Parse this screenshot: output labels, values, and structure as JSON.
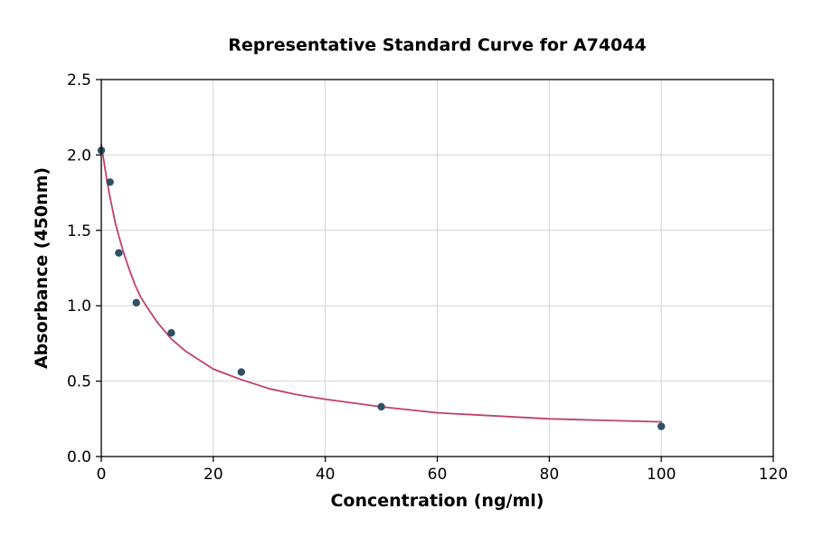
{
  "figure": {
    "background": "#ffffff"
  },
  "chart_data": {
    "type": "scatter",
    "title": "Representative Standard Curve for A74044",
    "xlabel": "Concentration (ng/ml)",
    "ylabel": "Absorbance (450nm)",
    "xlim": [
      0,
      120
    ],
    "ylim": [
      0,
      2.5
    ],
    "grid": true,
    "legend": "none",
    "x_ticks": [
      0,
      20,
      40,
      60,
      80,
      100,
      120
    ],
    "x_tick_labels": [
      "0",
      "20",
      "40",
      "60",
      "80",
      "100",
      "120"
    ],
    "y_ticks": [
      0,
      0.5,
      1.0,
      1.5,
      2.0,
      2.5
    ],
    "y_tick_labels": [
      "0.0",
      "0.5",
      "1.0",
      "1.5",
      "2.0",
      "2.5"
    ],
    "points": {
      "name": "standards",
      "x": [
        0,
        1.5625,
        3.125,
        6.25,
        12.5,
        25,
        50,
        100
      ],
      "y": [
        2.03,
        1.82,
        1.35,
        1.02,
        0.82,
        0.56,
        0.33,
        0.2
      ],
      "color": "#2e5068",
      "marker": "circle",
      "marker_radius": 4.2
    },
    "fit_curve": {
      "name": "4PL-fit",
      "x": [
        0,
        0.25,
        0.5,
        1,
        1.5,
        2,
        2.5,
        3,
        4,
        5,
        6,
        7,
        8,
        10,
        12.5,
        15,
        17.5,
        20,
        25,
        30,
        35,
        40,
        50,
        60,
        70,
        80,
        90,
        100
      ],
      "y": [
        2.07,
        2.01,
        1.95,
        1.83,
        1.73,
        1.64,
        1.55,
        1.48,
        1.35,
        1.24,
        1.14,
        1.06,
        1.0,
        0.89,
        0.78,
        0.7,
        0.64,
        0.58,
        0.51,
        0.45,
        0.41,
        0.38,
        0.33,
        0.29,
        0.27,
        0.25,
        0.24,
        0.23
      ],
      "color": "#c04067",
      "line_width": 1.8
    },
    "colors": {
      "grid": "#d4d4d4",
      "spine": "#000000",
      "tick": "#000000",
      "text": "#000000"
    }
  }
}
